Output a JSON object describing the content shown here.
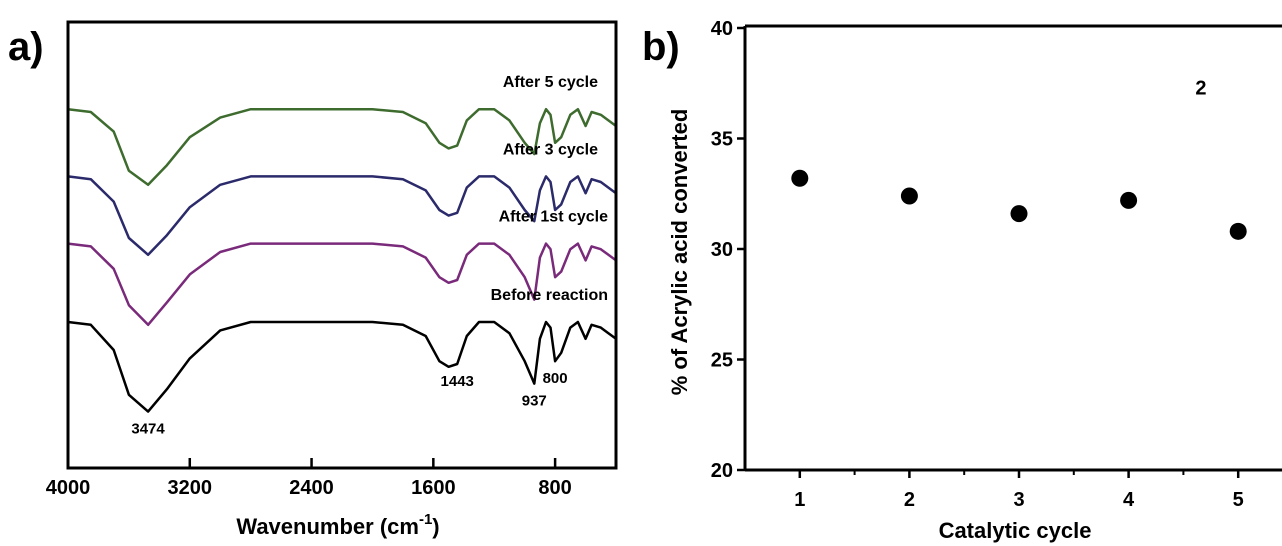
{
  "chart_data": [
    {
      "type": "line",
      "panel_label": "a)",
      "xlabel": "Wavenumber (cm",
      "xlabel_sup": "-1",
      "xlabel_close": ")",
      "ylabel": "",
      "xlim": [
        4000,
        400
      ],
      "x_reversed": true,
      "y_ticks_shown": false,
      "grid": false,
      "x_ticks": [
        4000,
        3200,
        2400,
        1600,
        800
      ],
      "x_tick_labels": [
        "4000",
        "3200",
        "2400",
        "1600",
        "800"
      ],
      "series": [
        {
          "name": "After 5 cycle",
          "color": "#3e6b2e",
          "offset": 0.76,
          "points": [
            [
              4000,
              0.0
            ],
            [
              3850,
              -0.01
            ],
            [
              3700,
              -0.08
            ],
            [
              3600,
              -0.22
            ],
            [
              3474,
              -0.27
            ],
            [
              3350,
              -0.2
            ],
            [
              3200,
              -0.1
            ],
            [
              3000,
              -0.03
            ],
            [
              2800,
              0.0
            ],
            [
              2400,
              0.0
            ],
            [
              2000,
              0.0
            ],
            [
              1800,
              -0.01
            ],
            [
              1650,
              -0.05
            ],
            [
              1560,
              -0.12
            ],
            [
              1500,
              -0.14
            ],
            [
              1443,
              -0.13
            ],
            [
              1380,
              -0.04
            ],
            [
              1300,
              0.0
            ],
            [
              1200,
              0.0
            ],
            [
              1100,
              -0.04
            ],
            [
              1000,
              -0.12
            ],
            [
              937,
              -0.16
            ],
            [
              900,
              -0.05
            ],
            [
              860,
              0.0
            ],
            [
              830,
              -0.02
            ],
            [
              800,
              -0.12
            ],
            [
              760,
              -0.1
            ],
            [
              700,
              -0.02
            ],
            [
              650,
              0.0
            ],
            [
              600,
              -0.06
            ],
            [
              560,
              -0.01
            ],
            [
              500,
              -0.02
            ],
            [
              450,
              -0.04
            ],
            [
              400,
              -0.06
            ]
          ]
        },
        {
          "name": "After 3 cycle",
          "color": "#2b2a6b",
          "offset": 0.52,
          "points": [
            [
              4000,
              0.0
            ],
            [
              3850,
              -0.01
            ],
            [
              3700,
              -0.09
            ],
            [
              3600,
              -0.22
            ],
            [
              3474,
              -0.28
            ],
            [
              3350,
              -0.21
            ],
            [
              3200,
              -0.11
            ],
            [
              3000,
              -0.03
            ],
            [
              2800,
              0.0
            ],
            [
              2400,
              0.0
            ],
            [
              2000,
              0.0
            ],
            [
              1800,
              -0.01
            ],
            [
              1650,
              -0.05
            ],
            [
              1560,
              -0.12
            ],
            [
              1500,
              -0.14
            ],
            [
              1443,
              -0.13
            ],
            [
              1380,
              -0.04
            ],
            [
              1300,
              0.0
            ],
            [
              1200,
              0.0
            ],
            [
              1100,
              -0.04
            ],
            [
              1000,
              -0.12
            ],
            [
              937,
              -0.16
            ],
            [
              900,
              -0.05
            ],
            [
              860,
              0.0
            ],
            [
              830,
              -0.02
            ],
            [
              800,
              -0.12
            ],
            [
              760,
              -0.1
            ],
            [
              700,
              -0.02
            ],
            [
              650,
              0.0
            ],
            [
              600,
              -0.06
            ],
            [
              560,
              -0.01
            ],
            [
              500,
              -0.02
            ],
            [
              450,
              -0.04
            ],
            [
              400,
              -0.06
            ]
          ]
        },
        {
          "name": "After 1st cycle",
          "color": "#7a2a7a",
          "offset": 0.28,
          "points": [
            [
              4000,
              0.0
            ],
            [
              3850,
              -0.01
            ],
            [
              3700,
              -0.09
            ],
            [
              3600,
              -0.22
            ],
            [
              3474,
              -0.29
            ],
            [
              3350,
              -0.21
            ],
            [
              3200,
              -0.11
            ],
            [
              3000,
              -0.03
            ],
            [
              2800,
              0.0
            ],
            [
              2400,
              0.0
            ],
            [
              2000,
              0.0
            ],
            [
              1800,
              -0.01
            ],
            [
              1650,
              -0.05
            ],
            [
              1560,
              -0.12
            ],
            [
              1500,
              -0.14
            ],
            [
              1443,
              -0.13
            ],
            [
              1380,
              -0.04
            ],
            [
              1300,
              0.0
            ],
            [
              1200,
              0.0
            ],
            [
              1100,
              -0.04
            ],
            [
              1000,
              -0.12
            ],
            [
              937,
              -0.2
            ],
            [
              900,
              -0.05
            ],
            [
              860,
              0.0
            ],
            [
              830,
              -0.02
            ],
            [
              800,
              -0.12
            ],
            [
              760,
              -0.1
            ],
            [
              700,
              -0.02
            ],
            [
              650,
              0.0
            ],
            [
              600,
              -0.06
            ],
            [
              560,
              -0.01
            ],
            [
              500,
              -0.02
            ],
            [
              450,
              -0.04
            ],
            [
              400,
              -0.06
            ]
          ]
        },
        {
          "name": "Before reaction",
          "color": "#000000",
          "offset": 0.0,
          "points": [
            [
              4000,
              0.0
            ],
            [
              3850,
              -0.01
            ],
            [
              3700,
              -0.1
            ],
            [
              3600,
              -0.26
            ],
            [
              3474,
              -0.32
            ],
            [
              3350,
              -0.24
            ],
            [
              3200,
              -0.13
            ],
            [
              3000,
              -0.03
            ],
            [
              2800,
              0.0
            ],
            [
              2400,
              0.0
            ],
            [
              2000,
              0.0
            ],
            [
              1800,
              -0.01
            ],
            [
              1650,
              -0.05
            ],
            [
              1560,
              -0.14
            ],
            [
              1500,
              -0.16
            ],
            [
              1443,
              -0.15
            ],
            [
              1380,
              -0.05
            ],
            [
              1300,
              0.0
            ],
            [
              1200,
              0.0
            ],
            [
              1100,
              -0.04
            ],
            [
              1000,
              -0.14
            ],
            [
              937,
              -0.22
            ],
            [
              900,
              -0.06
            ],
            [
              860,
              0.0
            ],
            [
              830,
              -0.02
            ],
            [
              800,
              -0.14
            ],
            [
              760,
              -0.11
            ],
            [
              700,
              -0.02
            ],
            [
              650,
              0.0
            ],
            [
              600,
              -0.06
            ],
            [
              560,
              -0.01
            ],
            [
              500,
              -0.02
            ],
            [
              450,
              -0.04
            ],
            [
              400,
              -0.06
            ]
          ]
        }
      ],
      "annotations": [
        {
          "text": "3474",
          "x": 3474
        },
        {
          "text": "1443",
          "x": 1443
        },
        {
          "text": "937",
          "x": 937
        },
        {
          "text": "800",
          "x": 800
        }
      ]
    },
    {
      "type": "scatter",
      "panel_label": "b)",
      "xlabel": "Catalytic cycle",
      "ylabel": "% of Acrylic acid converted",
      "xlim": [
        0.5,
        5.5
      ],
      "ylim": [
        20,
        40
      ],
      "grid": false,
      "x_ticks": [
        1,
        2,
        3,
        4,
        5
      ],
      "y_ticks": [
        20,
        25,
        30,
        35,
        40
      ],
      "x": [
        1,
        2,
        3,
        4,
        5
      ],
      "y": [
        33.2,
        32.4,
        31.6,
        32.2,
        30.8
      ],
      "marker_color": "#000000",
      "annotations": [
        {
          "text": "2",
          "x": 4.66,
          "y": 37.0
        }
      ]
    }
  ]
}
